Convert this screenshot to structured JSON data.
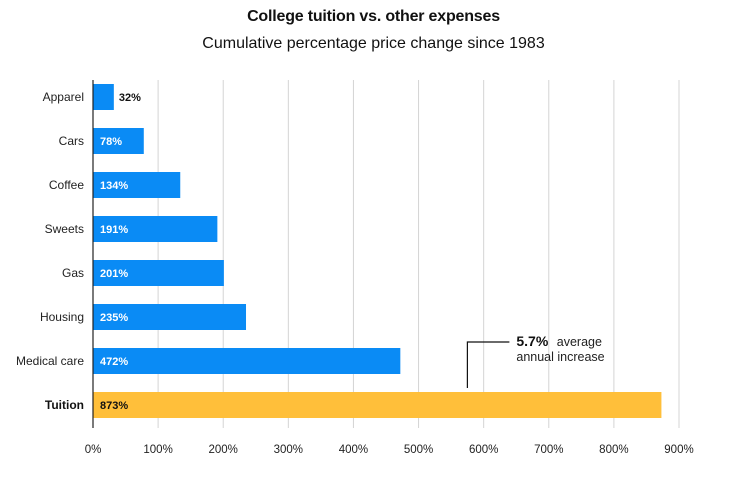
{
  "chart_data": {
    "type": "bar",
    "orientation": "horizontal",
    "title": "College tuition vs. other expenses",
    "subtitle": "Cumulative percentage price change since 1983",
    "categories": [
      "Apparel",
      "Cars",
      "Coffee",
      "Sweets",
      "Gas",
      "Housing",
      "Medical care",
      "Tuition"
    ],
    "values": [
      32,
      78,
      134,
      191,
      201,
      235,
      472,
      873
    ],
    "value_labels": [
      "32%",
      "78%",
      "134%",
      "191%",
      "201%",
      "235%",
      "472%",
      "873%"
    ],
    "highlight_category": "Tuition",
    "xlim": [
      0,
      900
    ],
    "x_ticks": [
      0,
      100,
      200,
      300,
      400,
      500,
      600,
      700,
      800,
      900
    ],
    "x_tick_labels": [
      "0%",
      "100%",
      "200%",
      "300%",
      "400%",
      "500%",
      "600%",
      "700%",
      "800%",
      "900%"
    ],
    "grid": true,
    "colors": {
      "bar": "#0a8bf5",
      "highlight": "#ffbf3a",
      "label_inside": "#ffffff",
      "label_highlight": "#111111"
    },
    "annotation": {
      "value": "5.7%",
      "text_line1": "average",
      "text_line2": "annual increase",
      "x_anchor": 575
    }
  }
}
